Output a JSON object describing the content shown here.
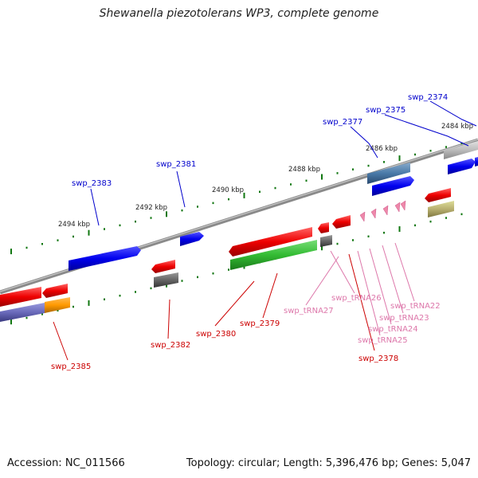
{
  "title": "Shewanella piezotolerans WP3, complete genome",
  "footer": {
    "accession": "Accession: NC_011566",
    "topology": "Topology: circular; Length: 5,396,476 bp; Genes: 5,047"
  },
  "scale_labels": [
    "2484 kbp",
    "2486 kbp",
    "2488 kbp",
    "2490 kbp",
    "2492 kbp",
    "2494 kbp"
  ],
  "gene_labels": {
    "swp_2374": "swp_2374",
    "swp_2375": "swp_2375",
    "swp_2377": "swp_2377",
    "swp_2381": "swp_2381",
    "swp_2383": "swp_2383",
    "swp_tRNA26": "swp_tRNA26",
    "swp_tRNA27": "swp_tRNA27",
    "swp_tRNA22": "swp_tRNA22",
    "swp_tRNA23": "swp_tRNA23",
    "swp_tRNA24": "swp_tRNA24",
    "swp_tRNA25": "swp_tRNA25",
    "swp_2378": "swp_2378",
    "swp_2379": "swp_2379",
    "swp_2380": "swp_2380",
    "swp_2382": "swp_2382",
    "swp_2385": "swp_2385"
  },
  "colors": {
    "forward_gene": "#0000ee",
    "reverse_gene": "#ee0000",
    "trna": "#ee88aa",
    "backbone": "#888888",
    "tick": "#117711",
    "rna_green": "#33bb33",
    "label_blue": "#0000cc",
    "label_red": "#cc0000",
    "label_pink": "#dd77aa"
  }
}
